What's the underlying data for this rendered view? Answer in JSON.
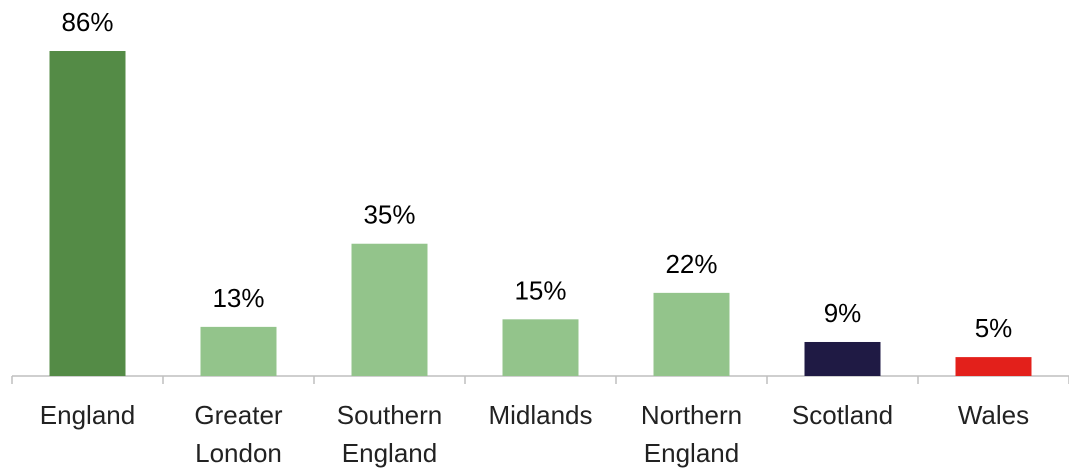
{
  "chart_data": {
    "type": "bar",
    "categories": [
      "England",
      "Greater London",
      "Southern England",
      "Midlands",
      "Northern England",
      "Scotland",
      "Wales"
    ],
    "values": [
      86,
      13,
      35,
      15,
      22,
      9,
      5
    ],
    "value_labels": [
      "86%",
      "13%",
      "35%",
      "15%",
      "22%",
      "9%",
      "5%"
    ],
    "colors": [
      "#548b46",
      "#93c48b",
      "#93c48b",
      "#93c48b",
      "#93c48b",
      "#1f1a44",
      "#e3201b"
    ]
  }
}
